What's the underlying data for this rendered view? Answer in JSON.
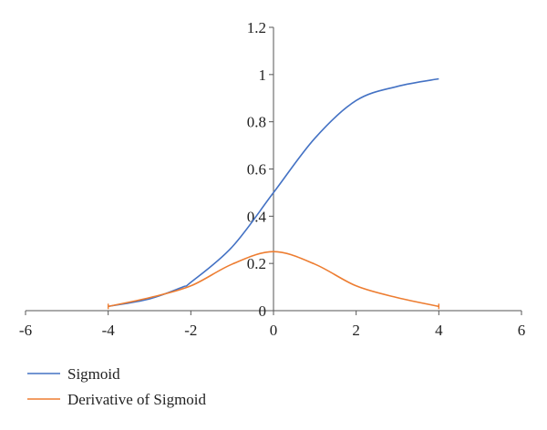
{
  "chart_data": {
    "type": "line",
    "x_ticks": [
      -6,
      -4,
      -2,
      0,
      2,
      4,
      6
    ],
    "x_tick_labels": [
      "-6",
      "-4",
      "-2",
      "0",
      "2",
      "4",
      "6"
    ],
    "y_ticks": [
      0,
      0.2,
      0.4,
      0.6,
      0.8,
      1,
      1.2
    ],
    "y_tick_labels": [
      "0",
      "0.2",
      "0.4",
      "0.6",
      "0.8",
      "1",
      "1.2"
    ],
    "xlim": [
      -6,
      6
    ],
    "ylim": [
      0,
      1.2
    ],
    "grid": false,
    "legend_position": "bottom-left",
    "series": [
      {
        "name": "Sigmoid",
        "color": "#4472C4",
        "x": [
          -4,
          -3,
          -2.2,
          -2,
          -1,
          0,
          1,
          2,
          3,
          4
        ],
        "y": [
          0.018,
          0.05,
          0.1,
          0.12,
          0.27,
          0.5,
          0.73,
          0.89,
          0.95,
          0.982
        ]
      },
      {
        "name": "Derivative of Sigmoid",
        "color": "#ED7D31",
        "x": [
          -4,
          -3,
          -2,
          -1,
          0,
          1,
          2,
          3,
          4
        ],
        "y": [
          0.018,
          0.055,
          0.105,
          0.197,
          0.25,
          0.197,
          0.105,
          0.055,
          0.018
        ]
      }
    ]
  }
}
